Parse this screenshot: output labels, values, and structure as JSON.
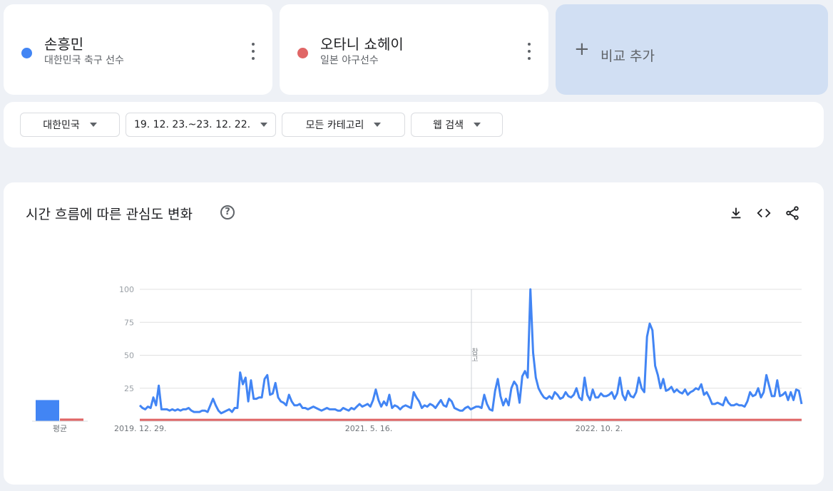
{
  "terms": [
    {
      "name": "손흥민",
      "desc": "대한민국 축구 선수",
      "color": "#4285f4"
    },
    {
      "name": "오타니 쇼헤이",
      "desc": "일본 야구선수",
      "color": "#e06666"
    }
  ],
  "add_compare": {
    "label": "비교 추가",
    "icon": "plus-icon"
  },
  "filters": {
    "region": "대한민국",
    "date_range": "19. 12. 23.~23. 12. 22.",
    "category": "모든 카테고리",
    "search_type": "웹 검색"
  },
  "panel": {
    "title": "시간 흐름에 따른 관심도 변화",
    "help_icon": "help-icon",
    "tools": [
      "download-icon",
      "embed-code-icon",
      "share-icon"
    ]
  },
  "chart_data": {
    "type": "line",
    "x_tick_labels": [
      "2019. 12. 29.",
      "2021. 5. 16.",
      "2022. 10. 2."
    ],
    "y_ticks": [
      25,
      50,
      75,
      100
    ],
    "ylim": [
      0,
      100
    ],
    "grid": true,
    "annotation": "참고",
    "average_label": "평균",
    "averages": [
      16,
      2
    ],
    "series": [
      {
        "name": "손흥민",
        "color": "#4285f4",
        "values": [
          12,
          10,
          9,
          11,
          10,
          18,
          12,
          27,
          9,
          9,
          9,
          8,
          9,
          8,
          9,
          8,
          9,
          9,
          10,
          8,
          7,
          7,
          7,
          8,
          8,
          7,
          12,
          17,
          12,
          8,
          6,
          7,
          8,
          9,
          7,
          10,
          10,
          37,
          28,
          33,
          15,
          31,
          17,
          17,
          18,
          18,
          32,
          35,
          20,
          21,
          29,
          18,
          15,
          14,
          12,
          20,
          15,
          12,
          12,
          13,
          10,
          10,
          9,
          10,
          11,
          10,
          9,
          8,
          9,
          10,
          9,
          9,
          9,
          8,
          8,
          10,
          9,
          8,
          10,
          9,
          11,
          13,
          11,
          12,
          13,
          11,
          16,
          24,
          16,
          11,
          15,
          12,
          20,
          10,
          12,
          11,
          9,
          11,
          12,
          11,
          10,
          22,
          18,
          15,
          10,
          12,
          11,
          13,
          12,
          10,
          13,
          16,
          12,
          11,
          17,
          15,
          10,
          9,
          8,
          8,
          10,
          11,
          9,
          10,
          11,
          11,
          10,
          20,
          13,
          9,
          8,
          23,
          32,
          19,
          12,
          17,
          12,
          25,
          30,
          27,
          14,
          34,
          38,
          33,
          100,
          52,
          33,
          25,
          21,
          18,
          17,
          19,
          17,
          22,
          20,
          17,
          18,
          22,
          19,
          18,
          20,
          25,
          18,
          16,
          33,
          20,
          16,
          24,
          18,
          18,
          21,
          19,
          19,
          20,
          22,
          17,
          21,
          33,
          20,
          16,
          23,
          19,
          18,
          22,
          33,
          25,
          22,
          64,
          74,
          69,
          42,
          35,
          25,
          32,
          23,
          24,
          26,
          22,
          24,
          22,
          21,
          24,
          20,
          22,
          23,
          25,
          24,
          28,
          20,
          22,
          18,
          13,
          13,
          14,
          13,
          12,
          18,
          14,
          12,
          12,
          13,
          12,
          12,
          11,
          15,
          22,
          19,
          20,
          25,
          18,
          22,
          35,
          27,
          19,
          19,
          31,
          19,
          20,
          22,
          16,
          22,
          16,
          24,
          23,
          13
        ]
      },
      {
        "name": "오타니 쇼헤이",
        "color": "#e06666",
        "values": [
          1,
          1,
          1,
          1,
          1,
          1,
          1,
          1,
          1,
          1,
          1,
          1,
          1,
          1,
          1,
          1,
          1,
          1,
          1,
          1,
          1,
          1,
          1,
          1,
          1,
          1,
          1,
          1,
          1,
          1,
          1,
          1,
          1,
          1,
          1,
          1,
          1,
          1,
          1,
          1,
          1,
          1,
          1,
          1,
          1,
          1,
          1,
          1,
          1,
          1,
          1,
          1,
          1,
          1,
          1,
          1,
          1,
          1,
          1,
          1,
          1,
          1,
          1,
          1,
          1,
          1,
          1,
          1,
          1,
          1,
          1,
          1,
          1,
          1,
          1,
          1,
          1,
          1,
          1,
          1,
          1,
          1,
          1,
          1,
          1,
          1,
          1,
          1,
          1,
          1,
          1,
          1,
          1,
          1,
          1,
          1,
          1,
          1,
          1,
          1,
          1,
          1,
          1,
          1,
          1,
          1,
          1,
          1,
          1,
          1,
          1,
          1,
          1,
          1,
          1,
          1,
          1,
          1,
          1,
          1,
          1,
          1,
          1,
          1,
          1,
          1,
          1,
          1,
          1,
          1,
          1,
          1,
          1,
          1,
          1,
          1,
          1,
          1,
          1,
          1,
          1,
          1,
          1,
          1,
          1,
          1,
          1,
          1,
          1,
          1,
          1,
          1,
          1,
          1,
          1,
          1,
          1,
          1,
          1,
          1,
          1,
          1,
          1,
          1,
          1,
          1,
          1,
          1,
          1,
          1,
          1,
          1,
          1,
          1,
          1,
          1,
          1,
          1,
          1,
          1,
          1,
          1,
          1,
          1,
          1,
          1,
          1,
          1,
          1,
          1,
          1,
          1,
          1,
          1,
          1,
          1,
          1,
          1,
          1,
          1,
          1,
          1,
          1,
          1,
          1,
          1,
          1,
          1,
          1,
          1,
          1,
          1,
          1,
          1,
          1,
          1,
          1,
          1,
          1,
          1,
          1,
          1,
          1,
          1,
          1,
          1,
          1,
          1,
          1,
          1,
          1,
          1,
          1,
          1,
          1,
          1,
          1,
          1,
          1,
          1,
          1,
          1,
          1,
          1,
          1,
          1,
          1,
          1,
          1,
          1,
          1
        ]
      }
    ]
  }
}
